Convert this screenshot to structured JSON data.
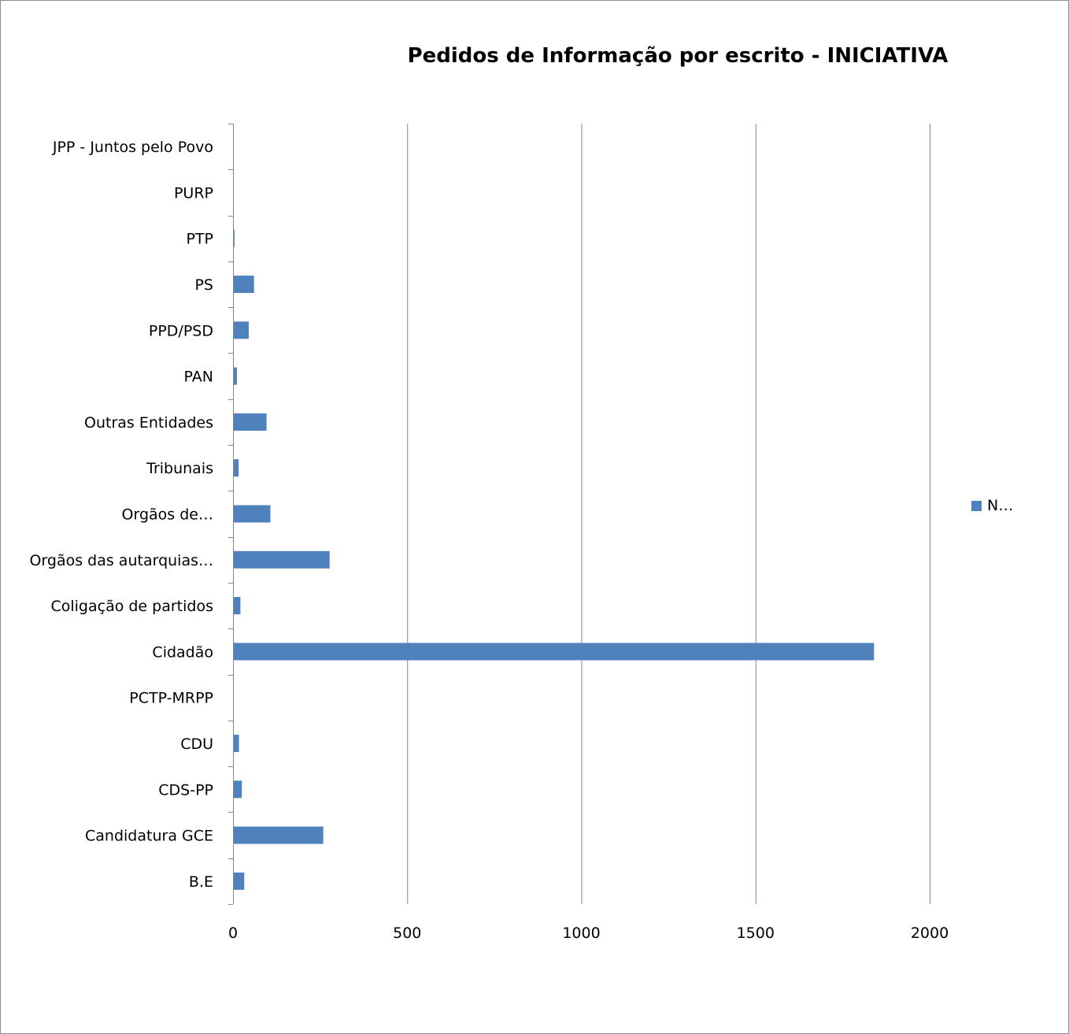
{
  "chart_data": {
    "type": "bar",
    "orientation": "horizontal",
    "title": "Pedidos de Informação por escrito - INICIATIVA",
    "categories": [
      "B.E",
      "Candidatura GCE",
      "CDS-PP",
      "CDU",
      "PCTP-MRPP",
      "Cidadão",
      "Coligação de partidos",
      "Orgãos das autarquias…",
      "Orgãos de…",
      "Tribunais",
      "Outras Entidades",
      "PAN",
      "PPD/PSD",
      "PS",
      "PTP",
      "PURP",
      "JPP - Juntos pelo Povo"
    ],
    "series": [
      {
        "name": "N…",
        "color": "#4f81bd",
        "values": [
          30,
          257,
          23,
          15,
          0,
          1838,
          19,
          275,
          105,
          14,
          94,
          9,
          43,
          58,
          2,
          0,
          0
        ]
      }
    ],
    "xlim": [
      0,
      2000
    ],
    "xticks": [
      0,
      500,
      1000,
      1500,
      2000
    ],
    "xlabel": "",
    "ylabel": "",
    "grid": "vertical major gridlines",
    "legend_position": "right"
  }
}
